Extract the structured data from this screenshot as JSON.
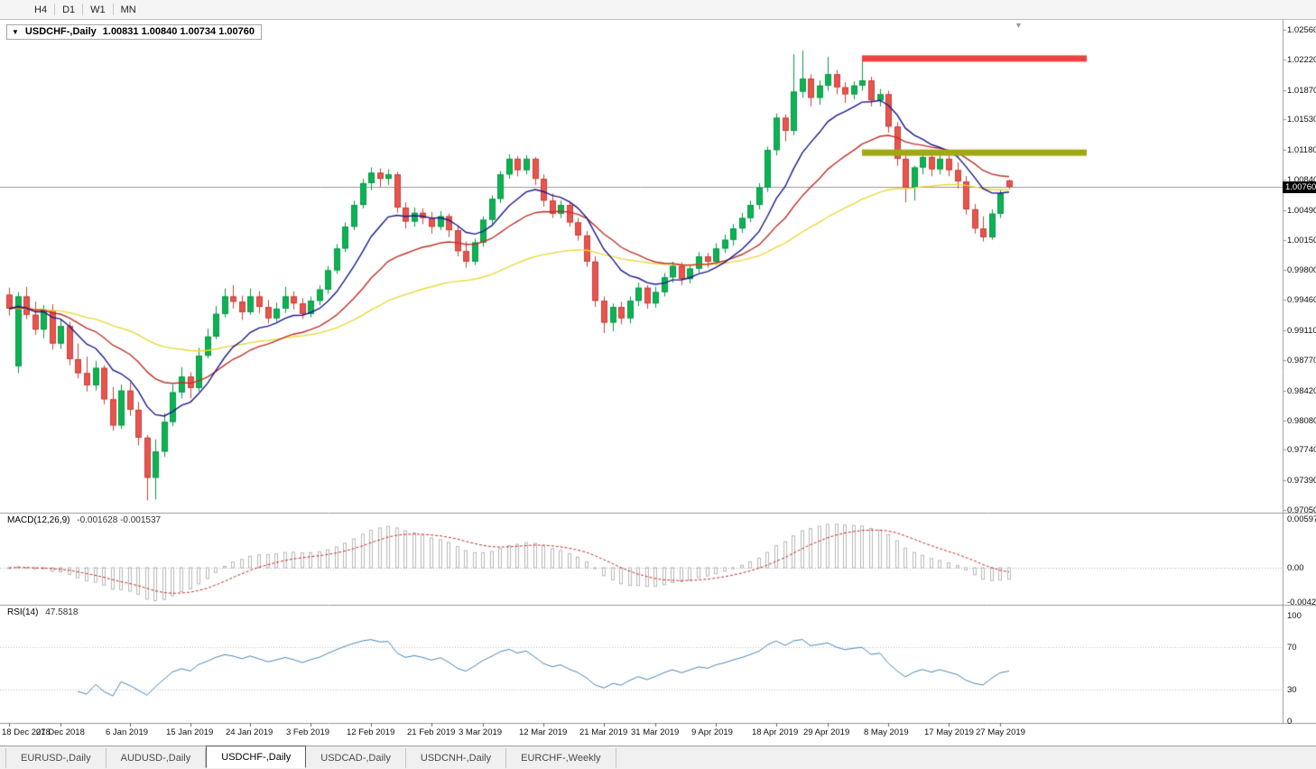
{
  "toolbar": {
    "timeframes": [
      "H4",
      "D1",
      "W1",
      "MN"
    ]
  },
  "icons": {
    "dropdown": "▼",
    "shift_marker": "▼"
  },
  "chart": {
    "title": "USDCHF-,Daily",
    "ohlc_text": "1.00831 1.00840 1.00734 1.00760",
    "current_price": "1.00760"
  },
  "indicators": {
    "macd": {
      "label": "MACD(12,26,9)",
      "values_text": "-0.001628 -0.001537"
    },
    "rsi": {
      "label": "RSI(14)",
      "value_text": "47.5818"
    }
  },
  "tabs": [
    {
      "label": "EURUSD-,Daily",
      "active": false
    },
    {
      "label": "AUDUSD-,Daily",
      "active": false
    },
    {
      "label": "USDCHF-,Daily",
      "active": true
    },
    {
      "label": "USDCAD-,Daily",
      "active": false
    },
    {
      "label": "USDCNH-,Daily",
      "active": false
    },
    {
      "label": "EURCHF-,Weekly",
      "active": false
    }
  ],
  "chart_data": {
    "type": "candlestick",
    "symbol": "USDCHF",
    "period": "Daily",
    "last_ohlc": {
      "open": 1.00831,
      "high": 1.0084,
      "low": 1.00734,
      "close": 1.0076
    },
    "current_price": 1.0076,
    "price_axis_range": [
      0.9705,
      1.0256
    ],
    "price_axis_ticks": [
      "1.02560",
      "1.02220",
      "1.01870",
      "1.01530",
      "1.01180",
      "1.00840",
      "1.00490",
      "1.00150",
      "0.99800",
      "0.99460",
      "0.99110",
      "0.98770",
      "0.98420",
      "0.98080",
      "0.97740",
      "0.97390",
      "0.97050"
    ],
    "colors": {
      "bull": "#0db254",
      "bull_edge": "#089a45",
      "bear": "#e8544e",
      "bear_edge": "#c8423c",
      "current_price_line": "#9a9a9a",
      "separator": "#9a9a9a"
    },
    "candles": [
      [
        0.9952,
        0.996,
        0.9928,
        0.9936
      ],
      [
        0.987,
        0.9955,
        0.9862,
        0.995
      ],
      [
        0.995,
        0.9961,
        0.9924,
        0.9929
      ],
      [
        0.9929,
        0.9944,
        0.9906,
        0.9912
      ],
      [
        0.9912,
        0.994,
        0.9902,
        0.9934
      ],
      [
        0.9934,
        0.9941,
        0.9889,
        0.9896
      ],
      [
        0.9896,
        0.9924,
        0.989,
        0.9916
      ],
      [
        0.9916,
        0.9921,
        0.9871,
        0.9878
      ],
      [
        0.9878,
        0.9896,
        0.9856,
        0.9862
      ],
      [
        0.9862,
        0.9881,
        0.9841,
        0.9848
      ],
      [
        0.9848,
        0.9876,
        0.9842,
        0.9868
      ],
      [
        0.9868,
        0.9871,
        0.9826,
        0.9832
      ],
      [
        0.9832,
        0.9846,
        0.9796,
        0.9802
      ],
      [
        0.9802,
        0.9849,
        0.9798,
        0.9842
      ],
      [
        0.9842,
        0.9851,
        0.9813,
        0.982
      ],
      [
        0.982,
        0.9829,
        0.9779,
        0.9788
      ],
      [
        0.9788,
        0.9791,
        0.9716,
        0.9742
      ],
      [
        0.9742,
        0.9786,
        0.9717,
        0.9772
      ],
      [
        0.9772,
        0.9816,
        0.9766,
        0.9806
      ],
      [
        0.9806,
        0.9849,
        0.9801,
        0.984
      ],
      [
        0.984,
        0.9869,
        0.9833,
        0.9858
      ],
      [
        0.9858,
        0.9863,
        0.9833,
        0.9845
      ],
      [
        0.9845,
        0.9891,
        0.9841,
        0.9882
      ],
      [
        0.9882,
        0.9913,
        0.9879,
        0.9904
      ],
      [
        0.9904,
        0.9939,
        0.9901,
        0.993
      ],
      [
        0.993,
        0.9959,
        0.9926,
        0.995
      ],
      [
        0.995,
        0.9963,
        0.9936,
        0.9944
      ],
      [
        0.9944,
        0.9951,
        0.9923,
        0.9932
      ],
      [
        0.9932,
        0.9959,
        0.9929,
        0.995
      ],
      [
        0.995,
        0.9956,
        0.9931,
        0.9938
      ],
      [
        0.9938,
        0.9946,
        0.9919,
        0.9925
      ],
      [
        0.9925,
        0.9943,
        0.9921,
        0.9936
      ],
      [
        0.9936,
        0.9961,
        0.9931,
        0.995
      ],
      [
        0.995,
        0.9956,
        0.9935,
        0.9942
      ],
      [
        0.9942,
        0.9948,
        0.9924,
        0.993
      ],
      [
        0.993,
        0.995,
        0.9926,
        0.9945
      ],
      [
        0.9945,
        0.9963,
        0.994,
        0.9958
      ],
      [
        0.9958,
        0.9985,
        0.9953,
        0.998
      ],
      [
        0.998,
        1.001,
        0.9976,
        1.0005
      ],
      [
        1.0005,
        1.0035,
        1.0001,
        1.003
      ],
      [
        1.003,
        1.006,
        1.0026,
        1.0055
      ],
      [
        1.0055,
        1.0085,
        1.0051,
        1.008
      ],
      [
        1.008,
        1.0098,
        1.0072,
        1.0092
      ],
      [
        1.0092,
        1.0097,
        1.0076,
        1.0085
      ],
      [
        1.0085,
        1.0096,
        1.0078,
        1.009
      ],
      [
        1.009,
        1.0093,
        1.0046,
        1.0052
      ],
      [
        1.0052,
        1.0058,
        1.0028,
        1.0036
      ],
      [
        1.0036,
        1.0052,
        1.003,
        1.0046
      ],
      [
        1.0046,
        1.0051,
        1.0033,
        1.004
      ],
      [
        1.004,
        1.0047,
        1.0022,
        1.003
      ],
      [
        1.003,
        1.0048,
        1.0026,
        1.0042
      ],
      [
        1.0042,
        1.0045,
        1.0018,
        1.0026
      ],
      [
        1.0026,
        1.0031,
        0.9996,
        1.0002
      ],
      [
        1.0002,
        1.0013,
        0.9983,
        0.999
      ],
      [
        0.999,
        1.0016,
        0.9986,
        1.0012
      ],
      [
        1.0012,
        1.0042,
        1.0007,
        1.0038
      ],
      [
        1.0038,
        1.0066,
        1.0033,
        1.0062
      ],
      [
        1.0062,
        1.0094,
        1.0057,
        1.009
      ],
      [
        1.009,
        1.0113,
        1.0085,
        1.0108
      ],
      [
        1.0108,
        1.0111,
        1.0088,
        1.0095
      ],
      [
        1.0095,
        1.0112,
        1.009,
        1.0108
      ],
      [
        1.0108,
        1.011,
        1.0078,
        1.0085
      ],
      [
        1.0085,
        1.009,
        1.0053,
        1.006
      ],
      [
        1.006,
        1.0068,
        1.004,
        1.0045
      ],
      [
        1.0045,
        1.006,
        1.004,
        1.0055
      ],
      [
        1.0055,
        1.0058,
        1.003,
        1.0035
      ],
      [
        1.0035,
        1.004,
        1.0014,
        1.002
      ],
      [
        1.002,
        1.0025,
        0.9984,
        0.999
      ],
      [
        0.999,
        0.9996,
        0.9938,
        0.9945
      ],
      [
        0.9945,
        0.995,
        0.9908,
        0.992
      ],
      [
        0.992,
        0.9942,
        0.991,
        0.9938
      ],
      [
        0.9938,
        0.9944,
        0.9918,
        0.9925
      ],
      [
        0.9925,
        0.995,
        0.9919,
        0.9945
      ],
      [
        0.9945,
        0.9966,
        0.9939,
        0.996
      ],
      [
        0.996,
        0.9963,
        0.9936,
        0.9942
      ],
      [
        0.9942,
        0.9961,
        0.9937,
        0.9955
      ],
      [
        0.9955,
        0.9977,
        0.995,
        0.9972
      ],
      [
        0.9972,
        0.999,
        0.9966,
        0.9985
      ],
      [
        0.9985,
        0.9989,
        0.9963,
        0.997
      ],
      [
        0.997,
        0.9987,
        0.9965,
        0.9982
      ],
      [
        0.9982,
        1.0001,
        0.9977,
        0.9996
      ],
      [
        0.9996,
        1.0,
        0.9983,
        0.999
      ],
      [
        0.999,
        1.0011,
        0.9986,
        1.0005
      ],
      [
        1.0005,
        1.0021,
        1.0,
        1.0015
      ],
      [
        1.0015,
        1.0033,
        1.0008,
        1.0028
      ],
      [
        1.0028,
        1.0046,
        1.0023,
        1.004
      ],
      [
        1.004,
        1.006,
        1.0035,
        1.0055
      ],
      [
        1.0055,
        1.008,
        1.005,
        1.0075
      ],
      [
        1.0075,
        1.0122,
        1.007,
        1.0118
      ],
      [
        1.0118,
        1.016,
        1.0112,
        1.0155
      ],
      [
        1.0155,
        1.0159,
        1.0128,
        1.014
      ],
      [
        1.014,
        1.0228,
        1.0135,
        1.0185
      ],
      [
        1.0185,
        1.0232,
        1.0178,
        1.02
      ],
      [
        1.02,
        1.0205,
        1.0168,
        1.0178
      ],
      [
        1.0178,
        1.0198,
        1.017,
        1.0192
      ],
      [
        1.0192,
        1.0225,
        1.0186,
        1.0205
      ],
      [
        1.0205,
        1.021,
        1.0182,
        1.019
      ],
      [
        1.019,
        1.0196,
        1.0172,
        1.0182
      ],
      [
        1.0182,
        1.0197,
        1.0176,
        1.0192
      ],
      [
        1.0192,
        1.0224,
        1.0186,
        1.0198
      ],
      [
        1.0198,
        1.0202,
        1.0168,
        1.0175
      ],
      [
        1.0175,
        1.0188,
        1.0168,
        1.0182
      ],
      [
        1.0182,
        1.0186,
        1.0138,
        1.0145
      ],
      [
        1.0145,
        1.015,
        1.01,
        1.0108
      ],
      [
        1.0108,
        1.0112,
        1.0058,
        1.0075
      ],
      [
        1.0075,
        1.01,
        1.006,
        1.0098
      ],
      [
        1.0098,
        1.0118,
        1.009,
        1.011
      ],
      [
        1.011,
        1.0117,
        1.0088,
        1.0096
      ],
      [
        1.0096,
        1.0116,
        1.009,
        1.0108
      ],
      [
        1.0108,
        1.0115,
        1.0088,
        1.0095
      ],
      [
        1.0095,
        1.0104,
        1.0074,
        1.0082
      ],
      [
        1.0082,
        1.0088,
        1.0044,
        1.005
      ],
      [
        1.005,
        1.0056,
        1.0022,
        1.0028
      ],
      [
        1.0028,
        1.0042,
        1.0013,
        1.0018
      ],
      [
        1.0018,
        1.005,
        1.0015,
        1.0045
      ],
      [
        1.0045,
        1.0072,
        1.004,
        1.0068
      ],
      [
        1.00831,
        1.0084,
        1.00734,
        1.0076
      ]
    ],
    "date_labels": [
      {
        "text": "18 Dec 2018",
        "index": 0
      },
      {
        "text": "27 Dec 2018",
        "index": 6
      },
      {
        "text": "6 Jan 2019",
        "index": 14
      },
      {
        "text": "15 Jan 2019",
        "index": 21
      },
      {
        "text": "24 Jan 2019",
        "index": 28
      },
      {
        "text": "3 Feb 2019",
        "index": 35
      },
      {
        "text": "12 Feb 2019",
        "index": 42
      },
      {
        "text": "21 Feb 2019",
        "index": 49
      },
      {
        "text": "3 Mar 2019",
        "index": 55
      },
      {
        "text": "12 Mar 2019",
        "index": 62
      },
      {
        "text": "21 Mar 2019",
        "index": 69
      },
      {
        "text": "31 Mar 2019",
        "index": 75
      },
      {
        "text": "9 Apr 2019",
        "index": 82
      },
      {
        "text": "18 Apr 2019",
        "index": 89
      },
      {
        "text": "29 Apr 2019",
        "index": 95
      },
      {
        "text": "8 May 2019",
        "index": 102
      },
      {
        "text": "17 May 2019",
        "index": 109
      },
      {
        "text": "27 May 2019",
        "index": 115
      }
    ],
    "moving_averages": [
      {
        "name": "fast-ma",
        "period": 10,
        "color": "#1a1a8c"
      },
      {
        "name": "mid-ma",
        "period": 22,
        "color": "#c03028"
      },
      {
        "name": "slow-ma",
        "period": 55,
        "color": "#ead939"
      }
    ],
    "macd": {
      "params": [
        12,
        26,
        9
      ],
      "last_values": [
        -0.001628,
        -0.001537
      ],
      "axis_ticks": [
        "0.00597",
        "0.00",
        "-0.00424"
      ],
      "axis_range": [
        -0.00424,
        0.00597
      ],
      "histogram_color": "#b8b8b8",
      "signal_color": "#cc2a2a"
    },
    "rsi": {
      "period": 14,
      "last_value": 47.5818,
      "axis_ticks": [
        "100",
        "70",
        "30",
        "0"
      ],
      "levels": [
        70,
        30
      ],
      "line_color": "#4a86b8"
    },
    "hlines": [
      {
        "name": "resistance-line",
        "price": 1.0223,
        "color": "#f04040",
        "thickness": 7,
        "from_index": 99,
        "to_index": 125
      },
      {
        "name": "support-line",
        "price": 1.0115,
        "color": "#a0a818",
        "thickness": 7,
        "from_index": 99,
        "to_index": 125
      }
    ]
  }
}
